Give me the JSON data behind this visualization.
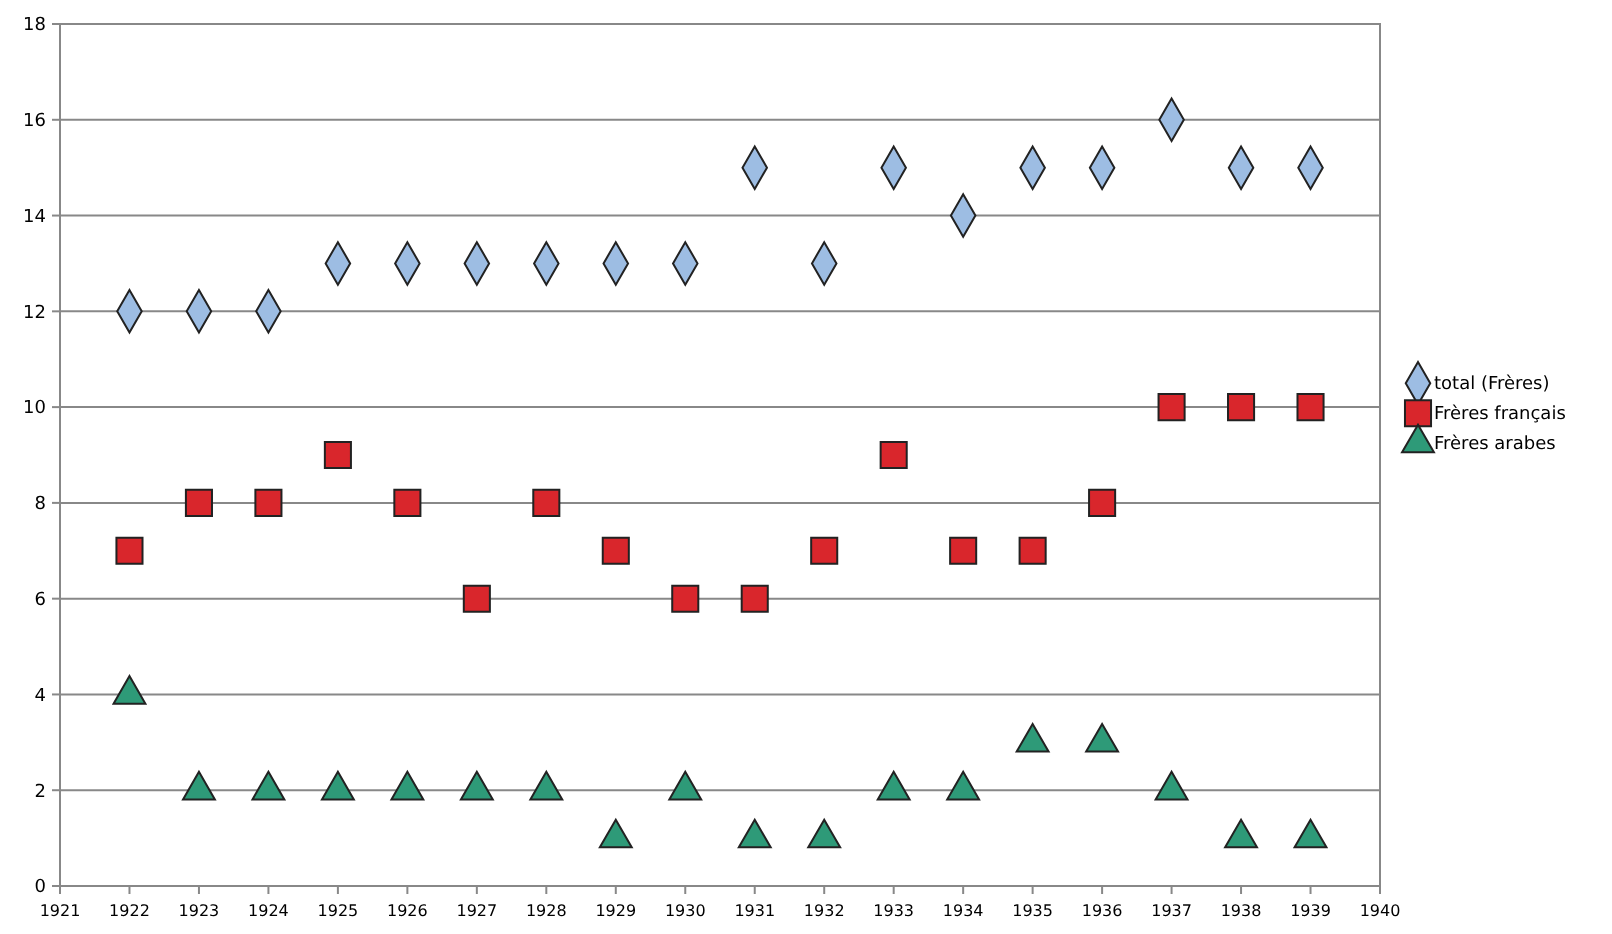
{
  "chart_data": {
    "type": "scatter",
    "x": [
      1922,
      1923,
      1924,
      1925,
      1926,
      1927,
      1928,
      1929,
      1930,
      1931,
      1932,
      1933,
      1934,
      1935,
      1936,
      1937,
      1938,
      1939
    ],
    "series": [
      {
        "name": "total (Frères)",
        "color": "#9dbde3",
        "marker": "diamond",
        "values": [
          12,
          12,
          12,
          13,
          13,
          13,
          13,
          13,
          13,
          15,
          13,
          15,
          14,
          15,
          15,
          16,
          15,
          15
        ]
      },
      {
        "name": "Frères français",
        "color": "#d9262c",
        "marker": "square",
        "values": [
          7,
          8,
          8,
          9,
          8,
          6,
          8,
          7,
          6,
          6,
          7,
          9,
          7,
          7,
          8,
          10,
          10,
          10
        ]
      },
      {
        "name": "Frères arabes",
        "color": "#2e9a78",
        "marker": "triangle",
        "values": [
          4,
          2,
          2,
          2,
          2,
          2,
          2,
          1,
          2,
          1,
          1,
          2,
          2,
          3,
          3,
          2,
          1,
          1
        ]
      }
    ],
    "xlim": [
      1921,
      1940
    ],
    "xticks": [
      1921,
      1922,
      1923,
      1924,
      1925,
      1926,
      1927,
      1928,
      1929,
      1930,
      1931,
      1932,
      1933,
      1934,
      1935,
      1936,
      1937,
      1938,
      1939,
      1940
    ],
    "ylim": [
      0,
      18
    ],
    "yticks": [
      0,
      2,
      4,
      6,
      8,
      10,
      12,
      14,
      16,
      18
    ],
    "grid": "y",
    "legend": "right"
  }
}
